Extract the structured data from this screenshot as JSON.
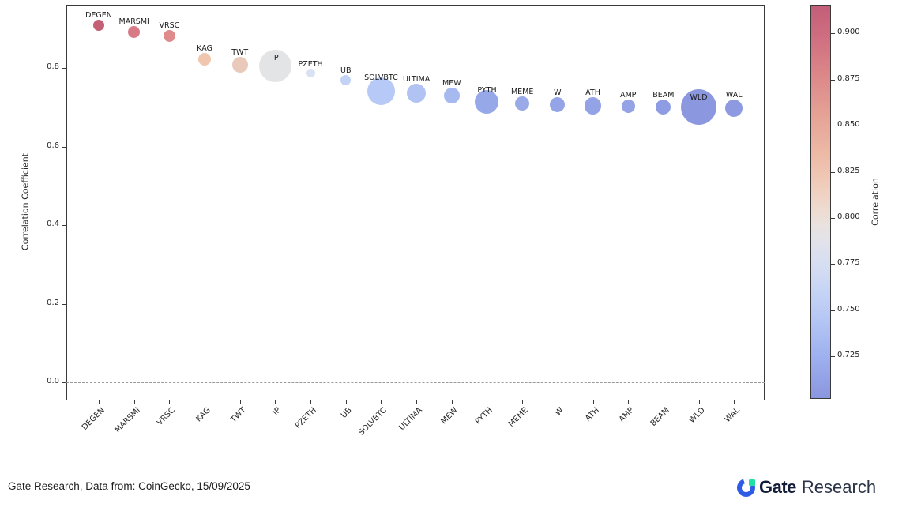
{
  "chart_data": {
    "type": "scatter",
    "title": "",
    "xlabel": "",
    "ylabel": "Correlation Coefficient",
    "colorbar_label": "Correlation",
    "ytick_labels": [
      "0.0",
      "0.2",
      "0.4",
      "0.6",
      "0.8"
    ],
    "ytick_values": [
      0.0,
      0.2,
      0.4,
      0.6,
      0.8
    ],
    "ylim": [
      -0.05,
      0.96
    ],
    "zero_line_value": 0.0,
    "grid": false,
    "legend_position": "colorbar-right",
    "categories": [
      "DEGEN",
      "MARSMI",
      "VRSC",
      "KAG",
      "TWT",
      "IP",
      "PZETH",
      "UB",
      "SOLVBTC",
      "ULTIMA",
      "MEW",
      "PYTH",
      "MEME",
      "W",
      "ATH",
      "AMP",
      "BEAM",
      "WLD",
      "WAL"
    ],
    "points": [
      {
        "label": "DEGEN",
        "value": 0.91,
        "size": 7,
        "color": "#c55f76"
      },
      {
        "label": "MARSMI",
        "value": 0.892,
        "size": 7.5,
        "color": "#d87a85"
      },
      {
        "label": "VRSC",
        "value": 0.882,
        "size": 7.5,
        "color": "#df8b8b"
      },
      {
        "label": "KAG",
        "value": 0.823,
        "size": 8,
        "color": "#f0c6af"
      },
      {
        "label": "TWT",
        "value": 0.808,
        "size": 10,
        "color": "#e9c9b9"
      },
      {
        "label": "IP",
        "value": 0.806,
        "size": 20.5,
        "color": "#e3e4e6"
      },
      {
        "label": "PZETH",
        "value": 0.787,
        "size": 5.5,
        "color": "#d9e2f4"
      },
      {
        "label": "UB",
        "value": 0.77,
        "size": 6.5,
        "color": "#c3d3f5"
      },
      {
        "label": "SOLVBTC",
        "value": 0.742,
        "size": 17.5,
        "color": "#b7c9f6"
      },
      {
        "label": "ULTIMA",
        "value": 0.737,
        "size": 12,
        "color": "#b0c3f3"
      },
      {
        "label": "MEW",
        "value": 0.73,
        "size": 10,
        "color": "#a6baf0"
      },
      {
        "label": "PYTH",
        "value": 0.714,
        "size": 15,
        "color": "#97a8e9"
      },
      {
        "label": "MEME",
        "value": 0.711,
        "size": 9,
        "color": "#9aaae9"
      },
      {
        "label": "W",
        "value": 0.707,
        "size": 9.6,
        "color": "#94a4e7"
      },
      {
        "label": "ATH",
        "value": 0.704,
        "size": 10.8,
        "color": "#93a3e6"
      },
      {
        "label": "AMP",
        "value": 0.704,
        "size": 8.5,
        "color": "#94a3e6"
      },
      {
        "label": "BEAM",
        "value": 0.701,
        "size": 9.5,
        "color": "#8e9de3"
      },
      {
        "label": "WLD",
        "value": 0.701,
        "size": 22.5,
        "color": "#8b98e0"
      },
      {
        "label": "WAL",
        "value": 0.699,
        "size": 11,
        "color": "#8d9ae1"
      }
    ],
    "colorbar": {
      "range": [
        0.702,
        0.9155
      ],
      "tick_labels": [
        "0.900",
        "0.875",
        "0.850",
        "0.825",
        "0.800",
        "0.775",
        "0.750",
        "0.725"
      ],
      "tick_values": [
        0.9,
        0.875,
        0.85,
        0.825,
        0.8,
        0.775,
        0.75,
        0.725
      ],
      "gradient_stops": [
        [
          0,
          "#c25e78"
        ],
        [
          8,
          "#cf6e80"
        ],
        [
          18,
          "#dc8889"
        ],
        [
          28,
          "#e5a295"
        ],
        [
          38,
          "#edbaa6"
        ],
        [
          46,
          "#f0cdbb"
        ],
        [
          52,
          "#eedbd0"
        ],
        [
          56,
          "#e9e2df"
        ],
        [
          60,
          "#e2e3ea"
        ],
        [
          66,
          "#d6def2"
        ],
        [
          74,
          "#c3d2f5"
        ],
        [
          82,
          "#b0c2f3"
        ],
        [
          90,
          "#9dafee"
        ],
        [
          100,
          "#8a96df"
        ]
      ]
    }
  },
  "footer": {
    "source": "Gate Research, Data from: CoinGecko, 15/09/2025",
    "logo_gate": "Gate",
    "logo_research": "Research"
  },
  "colors": {
    "spine": "#3a3a3a",
    "zero_line": "#9a9a9a",
    "logo_blue": "#2e5ce6",
    "logo_green": "#21e0a5"
  }
}
